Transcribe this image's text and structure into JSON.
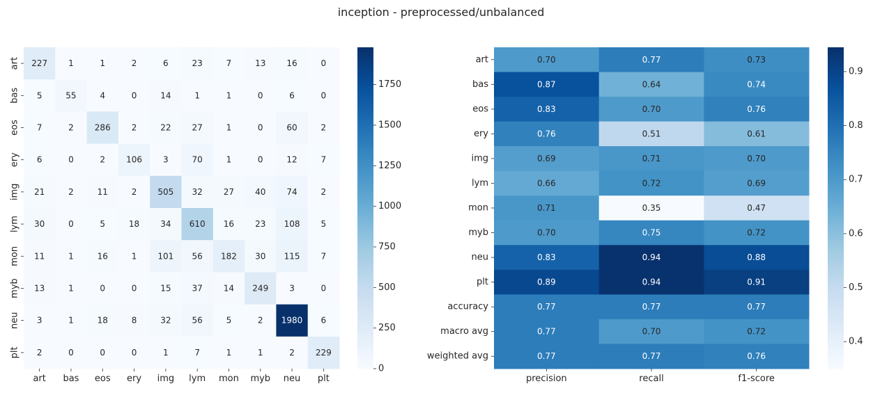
{
  "figure": {
    "title": "inception - preprocessed/unbalanced"
  },
  "chart_data": [
    {
      "type": "heatmap",
      "title": "",
      "xlabel": "",
      "ylabel": "",
      "x_labels": [
        "art",
        "bas",
        "eos",
        "ery",
        "img",
        "lym",
        "mon",
        "myb",
        "neu",
        "plt"
      ],
      "y_labels": [
        "art",
        "bas",
        "eos",
        "ery",
        "img",
        "lym",
        "mon",
        "myb",
        "neu",
        "plt"
      ],
      "values": [
        [
          227,
          1,
          1,
          2,
          6,
          23,
          7,
          13,
          16,
          0
        ],
        [
          5,
          55,
          4,
          0,
          14,
          1,
          1,
          0,
          6,
          0
        ],
        [
          7,
          2,
          286,
          2,
          22,
          27,
          1,
          0,
          60,
          2
        ],
        [
          6,
          0,
          2,
          106,
          3,
          70,
          1,
          0,
          12,
          7
        ],
        [
          21,
          2,
          11,
          2,
          505,
          32,
          27,
          40,
          74,
          2
        ],
        [
          30,
          0,
          5,
          18,
          34,
          610,
          16,
          23,
          108,
          5
        ],
        [
          11,
          1,
          16,
          1,
          101,
          56,
          182,
          30,
          115,
          7
        ],
        [
          13,
          1,
          0,
          0,
          15,
          37,
          14,
          249,
          3,
          0
        ],
        [
          3,
          1,
          18,
          8,
          32,
          56,
          5,
          2,
          1980,
          6
        ],
        [
          2,
          0,
          0,
          0,
          1,
          7,
          1,
          1,
          2,
          229
        ]
      ],
      "value_format": "d",
      "colormap": "Blues",
      "vmin": 0,
      "vmax": 1980,
      "colorbar_ticks": [
        0,
        250,
        500,
        750,
        1000,
        1250,
        1500,
        1750
      ]
    },
    {
      "type": "heatmap",
      "title": "",
      "xlabel": "",
      "ylabel": "",
      "x_labels": [
        "precision",
        "recall",
        "f1-score"
      ],
      "y_labels": [
        "art",
        "bas",
        "eos",
        "ery",
        "img",
        "lym",
        "mon",
        "myb",
        "neu",
        "plt",
        "accuracy",
        "macro avg",
        "weighted avg"
      ],
      "values": [
        [
          0.7,
          0.77,
          0.73
        ],
        [
          0.87,
          0.64,
          0.74
        ],
        [
          0.83,
          0.7,
          0.76
        ],
        [
          0.76,
          0.51,
          0.61
        ],
        [
          0.69,
          0.71,
          0.7
        ],
        [
          0.66,
          0.72,
          0.69
        ],
        [
          0.71,
          0.35,
          0.47
        ],
        [
          0.7,
          0.75,
          0.72
        ],
        [
          0.83,
          0.94,
          0.88
        ],
        [
          0.89,
          0.94,
          0.91
        ],
        [
          0.77,
          0.77,
          0.77
        ],
        [
          0.77,
          0.7,
          0.72
        ],
        [
          0.77,
          0.77,
          0.76
        ]
      ],
      "value_format": ".2f",
      "colormap": "Blues",
      "vmin": 0.35,
      "vmax": 0.945,
      "colorbar_ticks": [
        0.4,
        0.5,
        0.6,
        0.7,
        0.8,
        0.9
      ]
    }
  ]
}
